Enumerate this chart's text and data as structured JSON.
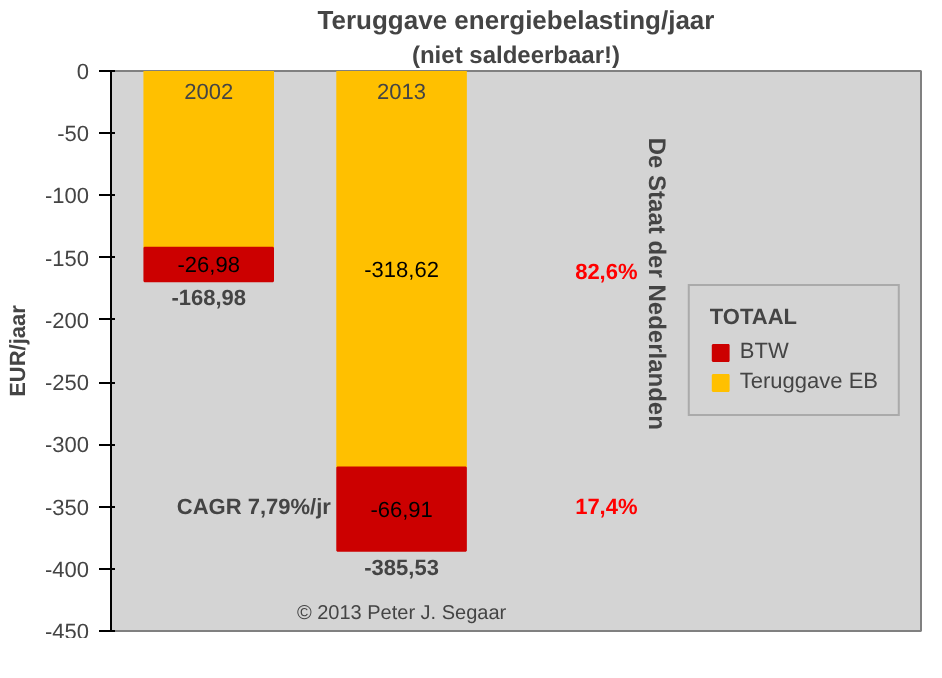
{
  "chart_data": {
    "type": "bar",
    "title": "Teruggave energiebelasting/jaar",
    "subtitle": "(niet saldeerbaar!)",
    "ylabel": "EUR/jaar",
    "legend_title": "TOTAAL",
    "categories": [
      "2002",
      "2013"
    ],
    "stacked": true,
    "series": [
      {
        "name": "Teruggave EB",
        "color": "#ffc000",
        "values": [
          -142.0,
          -318.62
        ],
        "value_labels": [
          null,
          "-318,62"
        ]
      },
      {
        "name": "BTW",
        "color": "#cc0000",
        "values": [
          -26.98,
          -66.91
        ],
        "value_labels": [
          "-26,98",
          "-66,91"
        ]
      }
    ],
    "ylim": [
      -450,
      0
    ],
    "yticks": [
      0,
      -50,
      -100,
      -150,
      -200,
      -250,
      -300,
      -350,
      -400,
      -450
    ],
    "grid": false,
    "legend": "right",
    "annotations": [
      {
        "text": "-168,98",
        "x": "2002",
        "y": -168.98
      },
      {
        "text": "-385,53",
        "x": "2013",
        "y": -385.53
      },
      "82,6%",
      "17,4%",
      "CAGR 7,79%/jr",
      "De Staat der Nederlanden",
      "© 2013 Peter J. Segaar"
    ]
  }
}
